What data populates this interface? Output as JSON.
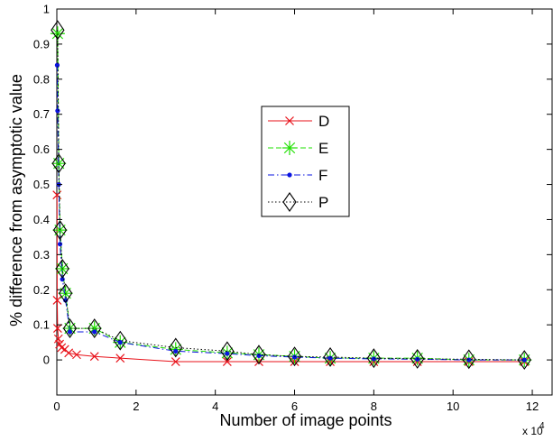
{
  "chart_data": {
    "type": "line",
    "title": "",
    "xlabel": "Number of image points",
    "ylabel": "% difference from asymptotic value",
    "x_multiplier": "x 10",
    "x_multiplier_exponent": "4",
    "xlim": [
      0,
      12.5
    ],
    "ylim": [
      -0.1,
      1.0
    ],
    "xticks": [
      0,
      2,
      4,
      6,
      8,
      10,
      12
    ],
    "xtick_labels": [
      "0",
      "2",
      "4",
      "6",
      "8",
      "10",
      "12"
    ],
    "yticks": [
      0,
      0.1,
      0.2,
      0.3,
      0.4,
      0.5,
      0.6,
      0.7,
      0.8,
      0.9,
      1
    ],
    "ytick_labels": [
      "0",
      "0.1",
      "0.2",
      "0.3",
      "0.4",
      "0.5",
      "0.6",
      "0.7",
      "0.8",
      "0.9",
      "1"
    ],
    "grid": false,
    "legend_position": "center",
    "series": [
      {
        "name": "D",
        "color": "#e8121a",
        "line_style": "solid",
        "marker": "x",
        "x": [
          0.005,
          0.01,
          0.02,
          0.04,
          0.07,
          0.12,
          0.2,
          0.3,
          0.5,
          0.95,
          1.6,
          3.0,
          4.3,
          5.1,
          6.0,
          6.9,
          8.0,
          9.1,
          10.4,
          11.8
        ],
        "y": [
          0.47,
          0.17,
          0.09,
          0.06,
          0.045,
          0.035,
          0.03,
          0.02,
          0.015,
          0.01,
          0.005,
          -0.005,
          -0.005,
          -0.005,
          -0.005,
          -0.005,
          -0.005,
          -0.005,
          -0.005,
          -0.005
        ]
      },
      {
        "name": "E",
        "color": "#1fe000",
        "line_style": "dashed",
        "marker": "asterisk",
        "x": [
          0.02,
          0.05,
          0.08,
          0.14,
          0.22,
          0.33,
          0.95,
          1.6,
          3.0,
          4.3,
          5.1,
          6.0,
          6.9,
          8.0,
          9.1,
          10.4,
          11.8
        ],
        "y": [
          0.93,
          0.56,
          0.37,
          0.26,
          0.19,
          0.09,
          0.09,
          0.05,
          0.03,
          0.02,
          0.015,
          0.01,
          0.005,
          0.005,
          0.005,
          0.0,
          0.0
        ]
      },
      {
        "name": "F",
        "color": "#0a14e0",
        "line_style": "dashdot",
        "marker": "dot",
        "x": [
          0.01,
          0.02,
          0.05,
          0.08,
          0.14,
          0.22,
          0.33,
          0.95,
          1.6,
          3.0,
          4.3,
          5.1,
          6.0,
          6.9,
          8.0,
          9.1,
          10.4,
          11.8
        ],
        "y": [
          0.84,
          0.71,
          0.5,
          0.33,
          0.23,
          0.17,
          0.08,
          0.08,
          0.05,
          0.025,
          0.018,
          0.012,
          0.008,
          0.005,
          0.003,
          0.002,
          0.0,
          0.0
        ]
      },
      {
        "name": "P",
        "color": "#000000",
        "line_style": "dotted",
        "marker": "diamond",
        "x": [
          0.02,
          0.05,
          0.08,
          0.14,
          0.22,
          0.33,
          0.95,
          1.6,
          3.0,
          4.3,
          5.1,
          6.0,
          6.9,
          8.0,
          9.1,
          10.4,
          11.8
        ],
        "y": [
          0.94,
          0.56,
          0.37,
          0.26,
          0.19,
          0.09,
          0.09,
          0.055,
          0.035,
          0.025,
          0.015,
          0.01,
          0.008,
          0.005,
          0.003,
          0.002,
          0.0
        ]
      }
    ]
  }
}
